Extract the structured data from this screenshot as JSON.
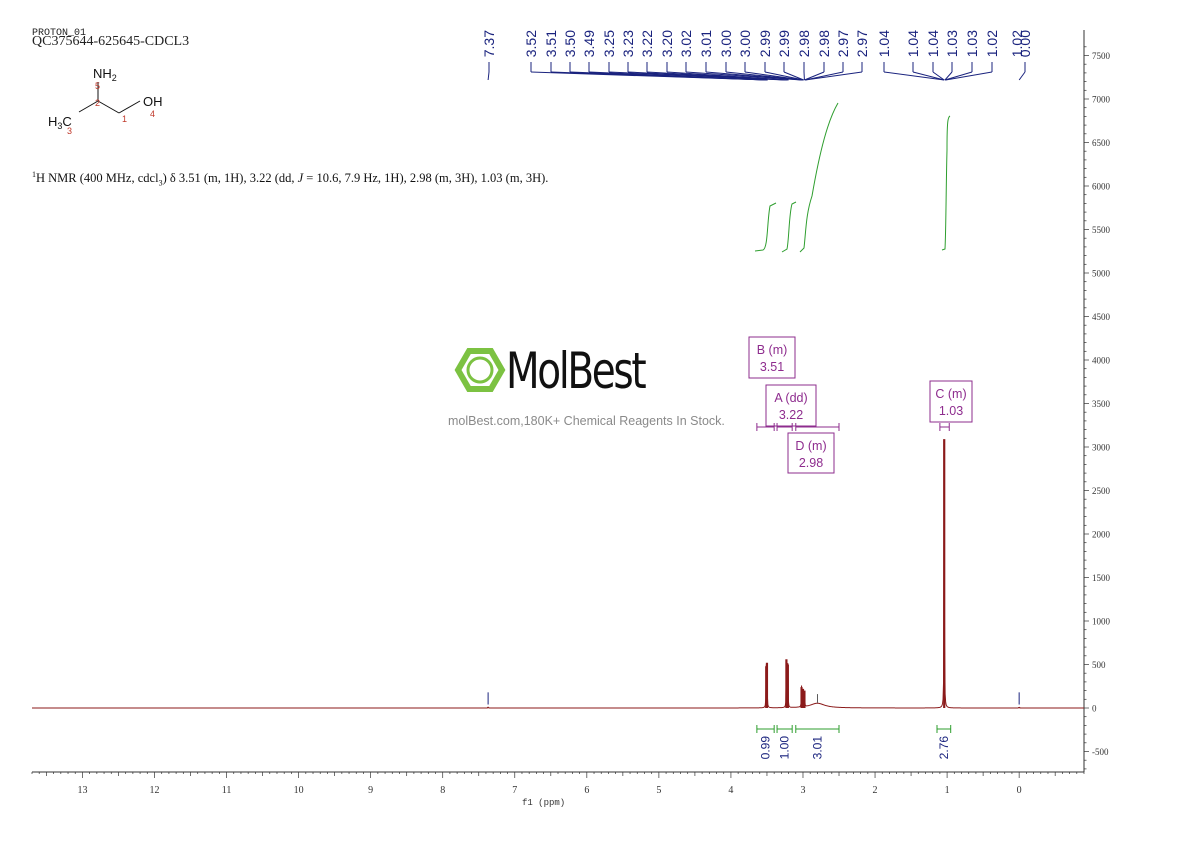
{
  "header": {
    "top_left_label": "PROTON_01",
    "sample_title": "QC375644-625645-CDCL3"
  },
  "molecule": {
    "atoms": {
      "nh2": "NH",
      "nh2_sub": "2",
      "oh": "OH",
      "ch3": "H",
      "ch3_c": "C",
      "ch3_sub": "3"
    },
    "locants": [
      "5",
      "2",
      "1",
      "4",
      "3"
    ]
  },
  "nmr_summary": {
    "prefix": "1",
    "text": "H NMR (400 MHz, cdcl",
    "sub": "3",
    "text2": ") δ 3.51 (m, 1H), 3.22 (dd, ",
    "j": "J",
    "text3": " = 10.6, 7.9 Hz, 1H), 2.98 (m, 3H), 1.03 (m, 3H)."
  },
  "watermark": {
    "brand": "MolBest",
    "caption": "molBest.com,180K+ Chemical Reagents In Stock."
  },
  "colors": {
    "spectrum": "#8b1a1a",
    "peak_label": "#1a237e",
    "integral": "#2e9e2e",
    "multiplet": "#8e2c8e",
    "logo_green": "#7cc242",
    "axis": "#333333"
  },
  "chart_data": {
    "type": "line",
    "xlabel": "f1 (ppm)",
    "ylabel": "",
    "xlim": [
      13.7,
      -0.9
    ],
    "ylim": [
      -750,
      7700
    ],
    "x_reversed": true,
    "x_ticks": [
      13,
      12,
      11,
      10,
      9,
      8,
      7,
      6,
      5,
      4,
      3,
      2,
      1,
      0
    ],
    "y_ticks": [
      7500,
      7000,
      6500,
      6000,
      5500,
      5000,
      4500,
      4000,
      3500,
      3000,
      2500,
      2000,
      1500,
      1000,
      500,
      0,
      -500
    ],
    "peaks": [
      {
        "ppm": 7.37,
        "height": 10
      },
      {
        "ppm": 3.51,
        "height": 480
      },
      {
        "ppm": 3.5,
        "height": 520
      },
      {
        "ppm": 3.23,
        "height": 560
      },
      {
        "ppm": 3.21,
        "height": 500
      },
      {
        "ppm": 3.02,
        "height": 240
      },
      {
        "ppm": 3.0,
        "height": 220
      },
      {
        "ppm": 2.98,
        "height": 200
      },
      {
        "ppm": 1.04,
        "height": 3090
      },
      {
        "ppm": 0.0,
        "height": 10
      }
    ],
    "peak_labels": [
      "7.37",
      "3.52",
      "3.51",
      "3.50",
      "3.49",
      "3.25",
      "3.23",
      "3.22",
      "3.20",
      "3.02",
      "3.01",
      "3.00",
      "3.00",
      "2.99",
      "2.99",
      "2.98",
      "2.98",
      "2.97",
      "2.97",
      "1.04",
      "1.04",
      "1.04",
      "1.03",
      "1.03",
      "1.02",
      "0.00"
    ],
    "multiplets": [
      {
        "name": "B (m)",
        "value": "3.51"
      },
      {
        "name": "A (dd)",
        "value": "3.22"
      },
      {
        "name": "D (m)",
        "value": "2.98"
      },
      {
        "name": "C (m)",
        "value": "1.03"
      }
    ],
    "integrals": [
      {
        "ppm_from": 3.64,
        "ppm_to": 3.4,
        "value": "0.99"
      },
      {
        "ppm_from": 3.36,
        "ppm_to": 3.15,
        "value": "1.00"
      },
      {
        "ppm_from": 3.1,
        "ppm_to": 2.5,
        "value": "3.01"
      },
      {
        "ppm_from": 1.14,
        "ppm_to": 0.95,
        "value": "2.76"
      }
    ]
  }
}
